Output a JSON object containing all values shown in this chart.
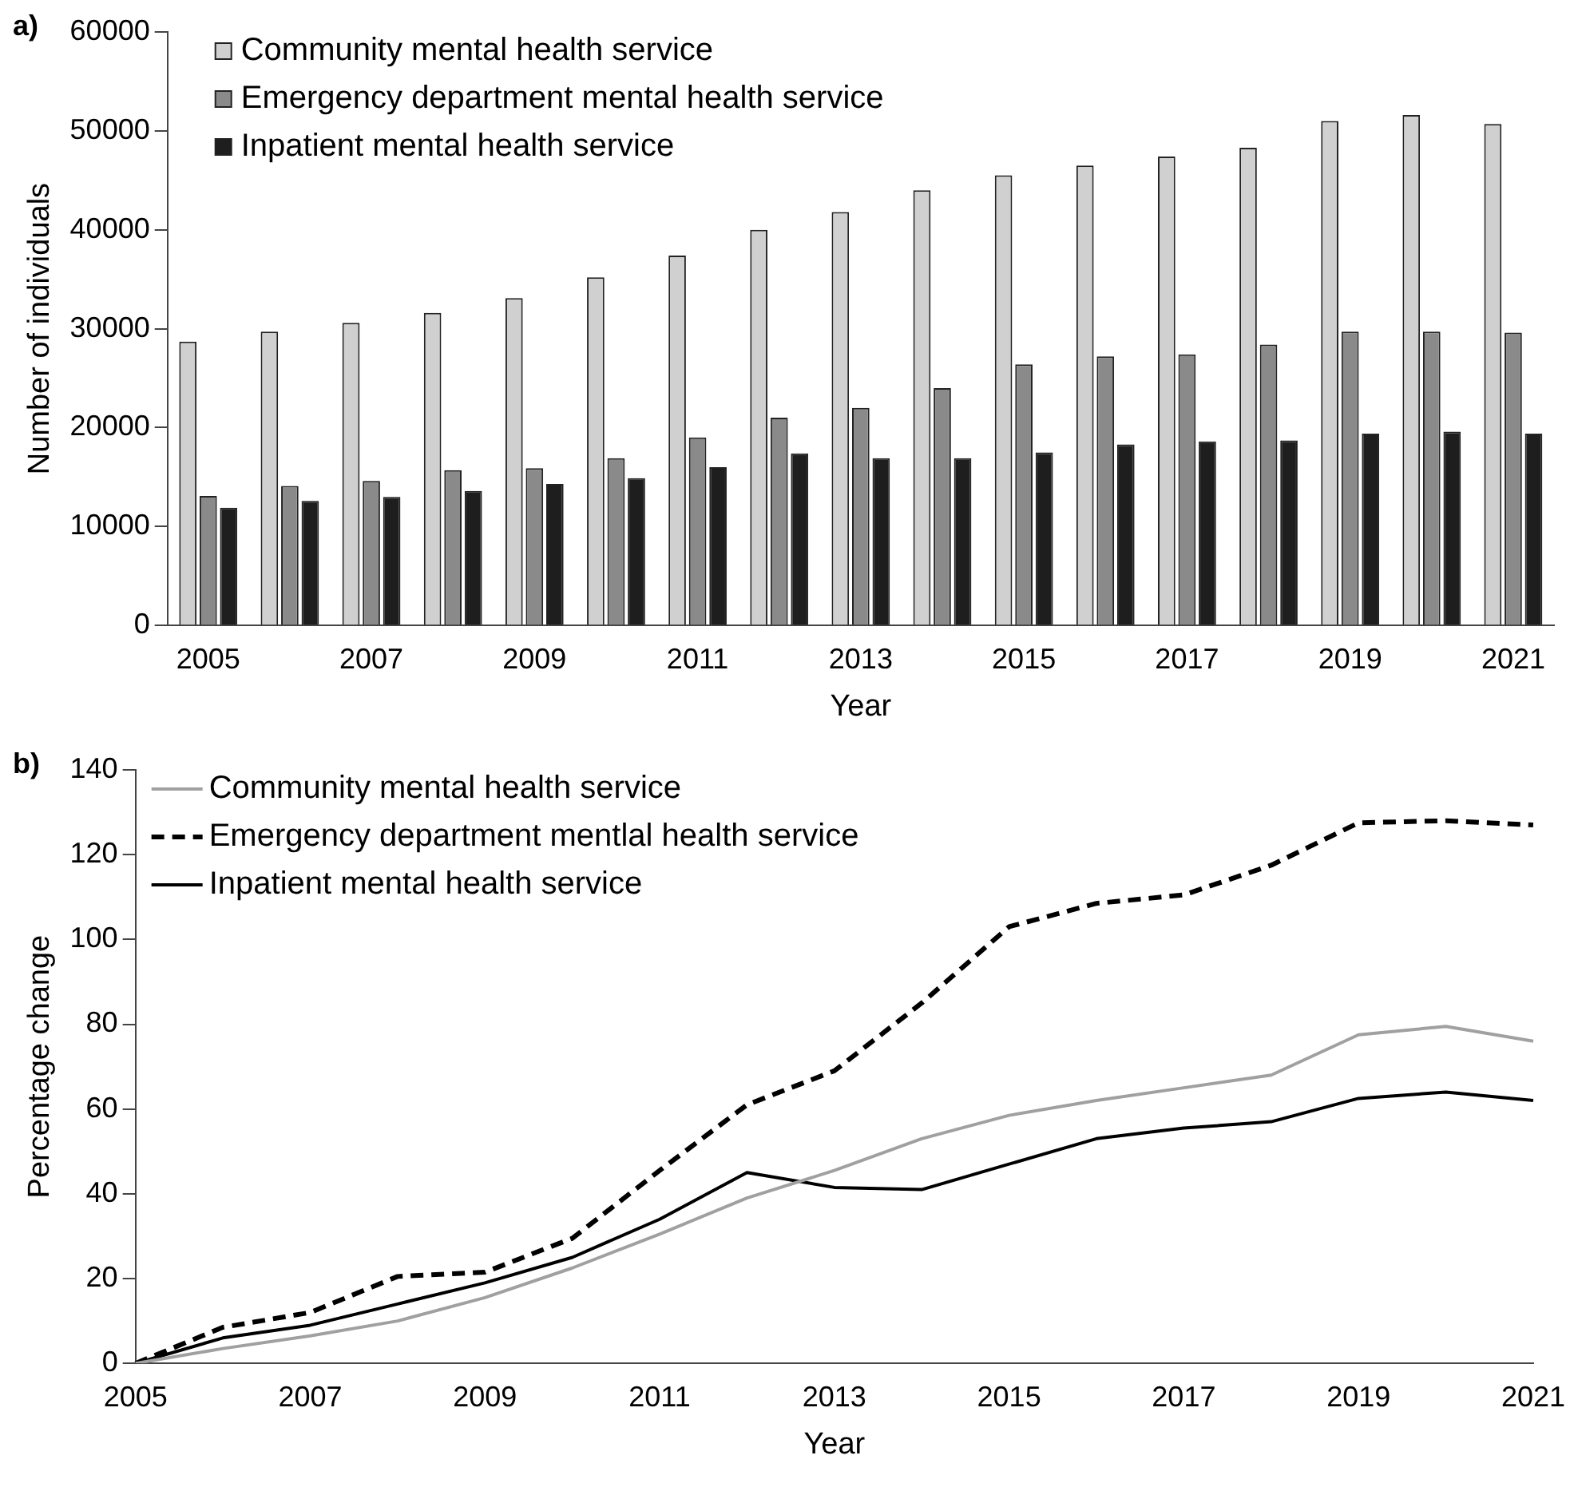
{
  "chart_data": [
    {
      "type": "bar",
      "title": "a)",
      "xlabel": "Year",
      "ylabel": "Number of individuals",
      "categories": [
        "2005",
        null,
        "2007",
        null,
        "2009",
        null,
        "2011",
        null,
        "2013",
        null,
        "2015",
        null,
        "2017",
        null,
        "2019",
        null,
        "2021"
      ],
      "ylim": [
        0,
        60000
      ],
      "yticks": [
        0,
        10000,
        20000,
        30000,
        40000,
        50000,
        60000
      ],
      "grid": false,
      "legend": "top left",
      "series": [
        {
          "name": "Community mental health service",
          "color": "#d0d0d0",
          "values": [
            28700,
            29700,
            30600,
            31600,
            33100,
            35200,
            37400,
            40000,
            41800,
            44000,
            45500,
            46500,
            47400,
            48300,
            51000,
            51600,
            50700
          ]
        },
        {
          "name": "Emergency department mental health service",
          "color": "#8a8a8a",
          "values": [
            13100,
            14100,
            14600,
            15700,
            15900,
            16900,
            19000,
            21000,
            22000,
            24000,
            26400,
            27200,
            27400,
            28400,
            29700,
            29700,
            29600
          ]
        },
        {
          "name": "Inpatient mental health service",
          "color": "#1e1e1e",
          "values": [
            11900,
            12600,
            13000,
            13600,
            14300,
            14900,
            16000,
            17400,
            16900,
            16900,
            17500,
            18300,
            18600,
            18700,
            19400,
            19600,
            19400
          ]
        }
      ]
    },
    {
      "type": "line",
      "title": "b)",
      "xlabel": "Year",
      "ylabel": "Percentage change",
      "categories": [
        "2005",
        null,
        "2007",
        null,
        "2009",
        null,
        "2011",
        null,
        "2013",
        null,
        "2015",
        null,
        "2017",
        null,
        "2019",
        null,
        "2021"
      ],
      "ylim": [
        0,
        140
      ],
      "yticks": [
        0,
        20,
        40,
        60,
        80,
        100,
        120,
        140
      ],
      "grid": false,
      "legend": "top left",
      "marker": "none",
      "series": [
        {
          "name": "Community mental health service",
          "color": "#a0a0a0",
          "line_style": "solid",
          "values": [
            0,
            3.5,
            6.5,
            10,
            15.5,
            22.5,
            30.5,
            39,
            45.5,
            53,
            58.5,
            62,
            65,
            68,
            77.5,
            79.5,
            76
          ]
        },
        {
          "name": "Emergency department mentlal health service",
          "color": "#000000",
          "line_style": "dashed",
          "values": [
            0,
            8.5,
            12,
            20.5,
            21.5,
            29.5,
            45.5,
            61,
            69,
            85,
            103,
            108.5,
            110.5,
            117.5,
            127.5,
            128,
            127
          ]
        },
        {
          "name": "Inpatient mental health service",
          "color": "#000000",
          "line_style": "solid",
          "values": [
            0,
            6,
            9,
            14,
            19,
            25,
            34,
            45,
            41.5,
            41,
            47,
            53,
            55.5,
            57,
            62.5,
            64,
            62
          ]
        }
      ]
    }
  ]
}
